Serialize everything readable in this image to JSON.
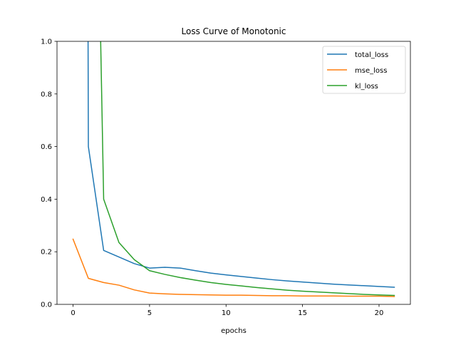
{
  "chart_data": {
    "type": "line",
    "title": "Loss Curve of Monotonic",
    "xlabel": "epochs",
    "ylabel": "",
    "xlim": [
      -1.05,
      22.05
    ],
    "ylim": [
      0,
      1.0
    ],
    "xticks": [
      0,
      5,
      10,
      15,
      20
    ],
    "yticks": [
      0.0,
      0.2,
      0.4,
      0.6,
      0.8,
      1.0
    ],
    "xtick_labels": [
      "0",
      "5",
      "10",
      "15",
      "20"
    ],
    "ytick_labels": [
      "0.0",
      "0.2",
      "0.4",
      "0.6",
      "0.8",
      "1.0"
    ],
    "grid": false,
    "legend": "top-right",
    "x": [
      0,
      1,
      2,
      3,
      4,
      5,
      6,
      7,
      8,
      9,
      10,
      11,
      12,
      13,
      14,
      15,
      16,
      17,
      18,
      19,
      20,
      21
    ],
    "series": [
      {
        "name": "total_loss",
        "color": "#1f77b4",
        "values": [
          null,
          0.6,
          0.205,
          0.18,
          0.155,
          0.138,
          0.141,
          0.138,
          0.128,
          0.119,
          0.112,
          0.106,
          0.1,
          0.094,
          0.089,
          0.085,
          0.081,
          0.077,
          0.074,
          0.071,
          0.068,
          0.065
        ]
      },
      {
        "name": "mse_loss",
        "color": "#ff7f0e",
        "values": [
          0.248,
          0.099,
          0.083,
          0.073,
          0.055,
          0.043,
          0.04,
          0.038,
          0.037,
          0.036,
          0.035,
          0.035,
          0.034,
          0.033,
          0.033,
          0.032,
          0.032,
          0.032,
          0.031,
          0.031,
          0.031,
          0.03
        ]
      },
      {
        "name": "kl_loss",
        "color": "#2ca02c",
        "values": [
          null,
          null,
          0.4,
          0.235,
          0.17,
          0.128,
          0.114,
          0.102,
          0.092,
          0.083,
          0.076,
          0.07,
          0.064,
          0.059,
          0.054,
          0.05,
          0.047,
          0.044,
          0.041,
          0.038,
          0.036,
          0.034
        ]
      }
    ],
    "offscale_entry": {
      "total_loss": {
        "x_at_top": 0.98
      },
      "kl_loss": {
        "x_at_top": 1.8
      }
    }
  }
}
